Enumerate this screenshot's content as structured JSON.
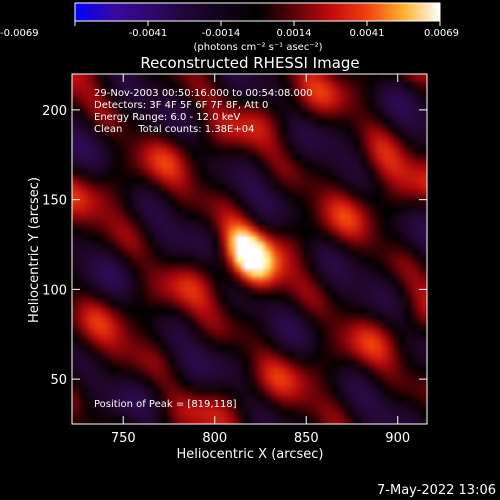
{
  "chart_data": {
    "type": "heatmap",
    "title": "Reconstructed RHESSI Image",
    "xlabel": "Heliocentric X (arcsec)",
    "ylabel": "Heliocentric Y (arcsec)",
    "xlim": [
      722,
      916
    ],
    "ylim": [
      25,
      220
    ],
    "x_ticks": [
      750,
      800,
      850,
      900
    ],
    "y_ticks": [
      50,
      100,
      150,
      200
    ],
    "grid": false,
    "colorbar": {
      "position": "top",
      "min": -0.0069,
      "max": 0.0069,
      "tick_labels": [
        "-0.0069",
        "-0.0041",
        "-0.0014",
        "0.0014",
        "0.0041",
        "0.0069"
      ],
      "unit_label": "(photons cm⁻² s⁻¹ asec⁻²)",
      "colors": [
        "#0000ff",
        "#3a0aa0",
        "#22063a",
        "#000000",
        "#3a0308",
        "#a0060d",
        "#e81a0a",
        "#ff7a14",
        "#ffe25a",
        "#ffffff"
      ]
    },
    "annotations": [
      "29-Nov-2003 00:50:16.000 to 00:54:08.000",
      "Detectors: 3F 4F 5F 6F 7F 8F, Att 0",
      "Energy Range: 6.0 - 12.0 keV",
      "Clean     Total counts: 1.38E+04"
    ],
    "peak_label": "Position of Peak = [819,118]",
    "peak": {
      "x": 819,
      "y": 118
    },
    "timestamp": "7-May-2022 13:06"
  }
}
